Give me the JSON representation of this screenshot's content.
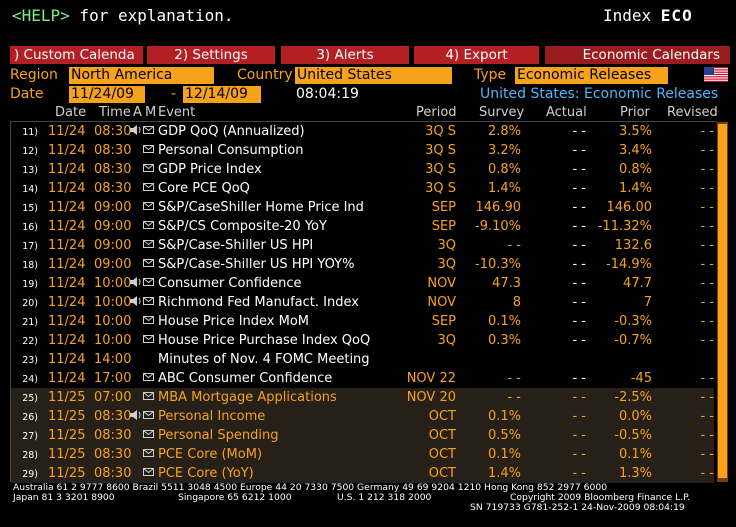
{
  "help": {
    "key": "<HELP>",
    "text": " for explanation."
  },
  "index": {
    "prefix": "Index ",
    "ticker": "ECO"
  },
  "menu": {
    "custom_calendar": ") Custom Calenda",
    "settings": "2) Settings",
    "alerts": "3) Alerts",
    "export": "4) Export",
    "title": "Economic Calendars"
  },
  "filters": {
    "region_label": "Region",
    "region_value": "North America",
    "country_label": "Country",
    "country_value": "United States",
    "type_label": "Type",
    "type_value": "Economic Releases",
    "date_label": "Date",
    "start_date": "11/24/09",
    "dash": "-",
    "end_date": "12/14/09",
    "time": "08:04:19",
    "subtitle": "United States: Economic Releases",
    "flag_icon": "us-flag-icon"
  },
  "columns": {
    "date": "Date",
    "time": "Time",
    "a": "A",
    "m": "M",
    "event": "Event",
    "period": "Period",
    "survey": "Survey",
    "actual": "Actual",
    "prior": "Prior",
    "revised": "Revised"
  },
  "rows": [
    {
      "num": "11)",
      "date": "11/24",
      "time": "08:30",
      "icon": "speaker-mail",
      "event": "GDP QoQ (Annualized)",
      "period": "3Q S",
      "survey": "2.8%",
      "actual": "- -",
      "prior": "3.5%",
      "revised": "- -",
      "hl": false
    },
    {
      "num": "12)",
      "date": "11/24",
      "time": "08:30",
      "icon": "mail",
      "event": "Personal Consumption",
      "period": "3Q S",
      "survey": "3.2%",
      "actual": "- -",
      "prior": "3.4%",
      "revised": "- -",
      "hl": false
    },
    {
      "num": "13)",
      "date": "11/24",
      "time": "08:30",
      "icon": "mail",
      "event": "GDP Price Index",
      "period": "3Q S",
      "survey": "0.8%",
      "actual": "- -",
      "prior": "0.8%",
      "revised": "- -",
      "hl": false
    },
    {
      "num": "14)",
      "date": "11/24",
      "time": "08:30",
      "icon": "mail",
      "event": "Core PCE QoQ",
      "period": "3Q S",
      "survey": "1.4%",
      "actual": "- -",
      "prior": "1.4%",
      "revised": "- -",
      "hl": false
    },
    {
      "num": "15)",
      "date": "11/24",
      "time": "09:00",
      "icon": "mail",
      "event": "S&P/CaseShiller Home Price Ind",
      "period": "SEP",
      "survey": "146.90",
      "actual": "- -",
      "prior": "146.00",
      "revised": "- -",
      "hl": false
    },
    {
      "num": "16)",
      "date": "11/24",
      "time": "09:00",
      "icon": "mail",
      "event": "S&P/CS Composite-20 YoY",
      "period": "SEP",
      "survey": "-9.10%",
      "actual": "- -",
      "prior": "-11.32%",
      "revised": "- -",
      "hl": false
    },
    {
      "num": "17)",
      "date": "11/24",
      "time": "09:00",
      "icon": "mail",
      "event": "S&P/Case-Shiller US HPI",
      "period": "3Q",
      "survey": "- -",
      "actual": "- -",
      "prior": "132.6",
      "revised": "- -",
      "hl": false
    },
    {
      "num": "18)",
      "date": "11/24",
      "time": "09:00",
      "icon": "mail",
      "event": "S&P/Case-Shiller US HPI YOY%",
      "period": "3Q",
      "survey": "-10.3%",
      "actual": "- -",
      "prior": "-14.9%",
      "revised": "- -",
      "hl": false
    },
    {
      "num": "19)",
      "date": "11/24",
      "time": "10:00",
      "icon": "speaker-mail",
      "event": "Consumer Confidence",
      "period": "NOV",
      "survey": "47.3",
      "actual": "- -",
      "prior": "47.7",
      "revised": "- -",
      "hl": false
    },
    {
      "num": "20)",
      "date": "11/24",
      "time": "10:00",
      "icon": "speaker-mail",
      "event": "Richmond Fed Manufact. Index",
      "period": "NOV",
      "survey": "8",
      "actual": "- -",
      "prior": "7",
      "revised": "- -",
      "hl": false
    },
    {
      "num": "21)",
      "date": "11/24",
      "time": "10:00",
      "icon": "mail",
      "event": "House Price Index MoM",
      "period": "SEP",
      "survey": "0.1%",
      "actual": "- -",
      "prior": "-0.3%",
      "revised": "- -",
      "hl": false
    },
    {
      "num": "22)",
      "date": "11/24",
      "time": "10:00",
      "icon": "mail",
      "event": "House Price Purchase Index QoQ",
      "period": "3Q",
      "survey": "0.3%",
      "actual": "- -",
      "prior": "-0.7%",
      "revised": "- -",
      "hl": false
    },
    {
      "num": "23)",
      "date": "11/24",
      "time": "14:00",
      "icon": "",
      "event": "Minutes of Nov. 4 FOMC Meeting",
      "period": "",
      "survey": "",
      "actual": "",
      "prior": "",
      "revised": "",
      "hl": false
    },
    {
      "num": "24)",
      "date": "11/24",
      "time": "17:00",
      "icon": "mail",
      "event": "ABC Consumer Confidence",
      "period": "NOV 22",
      "survey": "- -",
      "actual": "- -",
      "prior": "-45",
      "revised": "- -",
      "hl": false
    },
    {
      "num": "25)",
      "date": "11/25",
      "time": "07:00",
      "icon": "mail",
      "event": "MBA Mortgage Applications",
      "period": "NOV 20",
      "survey": "- -",
      "actual": "- -",
      "prior": "-2.5%",
      "revised": "- -",
      "hl": true
    },
    {
      "num": "26)",
      "date": "11/25",
      "time": "08:30",
      "icon": "speaker-mail",
      "event": "Personal Income",
      "period": "OCT",
      "survey": "0.1%",
      "actual": "- -",
      "prior": "0.0%",
      "revised": "- -",
      "hl": true
    },
    {
      "num": "27)",
      "date": "11/25",
      "time": "08:30",
      "icon": "mail",
      "event": "Personal Spending",
      "period": "OCT",
      "survey": "0.5%",
      "actual": "- -",
      "prior": "-0.5%",
      "revised": "- -",
      "hl": true
    },
    {
      "num": "28)",
      "date": "11/25",
      "time": "08:30",
      "icon": "mail",
      "event": "PCE Core (MoM)",
      "period": "OCT",
      "survey": "0.1%",
      "actual": "- -",
      "prior": "0.1%",
      "revised": "- -",
      "hl": true
    },
    {
      "num": "29)",
      "date": "11/25",
      "time": "08:30",
      "icon": "mail",
      "event": "PCE Core (YoY)",
      "period": "OCT",
      "survey": "1.4%",
      "actual": "- -",
      "prior": "1.3%",
      "revised": "- -",
      "hl": true
    }
  ],
  "footer": {
    "line1": "Australia 61 2 9777 8600 Brazil 5511 3048 4500 Europe 44 20 7330 7500 Germany 49 69 9204 1210 Hong Kong 852 2977 6000",
    "line2a": "Japan 81 3 3201 8900",
    "line2b": "Singapore 65 6212 1000",
    "line2c": "U.S. 1 212 318 2000",
    "line2d": "Copyright 2009 Bloomberg Finance L.P.",
    "line3": "SN 719733 G781-252-1 24-Nov-2009 08:04:19"
  },
  "colors": {
    "accent": "#f7a21b",
    "menu": "#b41f24",
    "subtitle": "#4db8ff",
    "highlight_row": "#262019"
  }
}
